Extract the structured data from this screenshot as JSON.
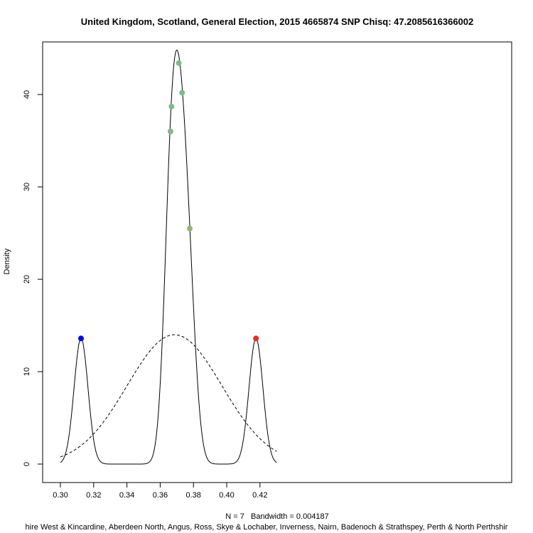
{
  "chart_data": {
    "type": "line",
    "title": "United Kingdom, Scotland, General Election, 2015 4665874 SNP Chisq: 47.2085616366002",
    "xlabel": "N = 7   Bandwidth = 0.004187",
    "xlabel2": "hire West & Kincardine, Aberdeen North, Angus, Ross, Skye & Lochaber, Inverness, Nairn, Badenoch & Strathspey, Perth & North Perthshir",
    "ylabel": "Density",
    "xlim": [
      0.3,
      0.43
    ],
    "ylim": [
      0,
      44
    ],
    "x_ticks": [
      0.3,
      0.32,
      0.34,
      0.36,
      0.38,
      0.4,
      0.42
    ],
    "x_tick_labels": [
      "0.30",
      "0.32",
      "0.34",
      "0.36",
      "0.38",
      "0.40",
      "0.42"
    ],
    "y_ticks": [
      0,
      10,
      20,
      30,
      40
    ],
    "y_tick_labels": [
      "0",
      "10",
      "20",
      "30",
      "40"
    ],
    "bandwidth": 0.004187,
    "observations": [
      0.3124,
      0.3662,
      0.3668,
      0.3712,
      0.3732,
      0.3778,
      0.4176
    ],
    "normal_curve": {
      "mean": 0.3686,
      "sd": 0.0285
    },
    "points": [
      {
        "x": 0.3124,
        "y": 13.6,
        "color": "#0000ff"
      },
      {
        "x": 0.3662,
        "y": 36.0,
        "color": "#7fb88a"
      },
      {
        "x": 0.3668,
        "y": 38.7,
        "color": "#7fb88a"
      },
      {
        "x": 0.3712,
        "y": 43.4,
        "color": "#7fb88a"
      },
      {
        "x": 0.3732,
        "y": 40.2,
        "color": "#7fb88a"
      },
      {
        "x": 0.3778,
        "y": 25.5,
        "color": "#93b57a"
      },
      {
        "x": 0.4176,
        "y": 13.6,
        "color": "#ee2a1a"
      }
    ],
    "series": [
      {
        "style": "solid",
        "kind": "kernel-density"
      },
      {
        "style": "dashed",
        "kind": "normal-density"
      }
    ],
    "grid": false,
    "legend": "none"
  }
}
